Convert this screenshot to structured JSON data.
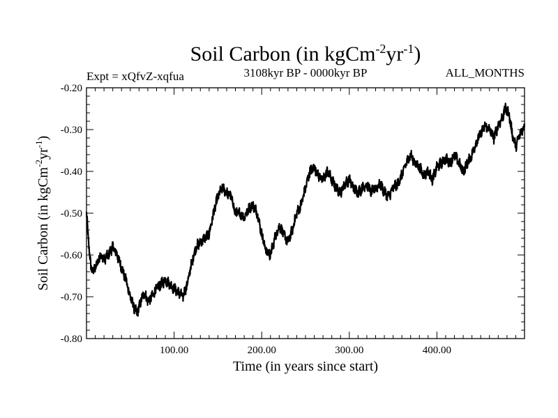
{
  "chart_data": {
    "type": "line",
    "title": {
      "prefix": "Soil Carbon (in kgCm",
      "sup1": "-2",
      "mid": "yr",
      "sup2": "-1",
      "suffix": ")"
    },
    "experiment_label": "Expt = xQfvZ-xqfua",
    "period_label": "3108kyr BP - 0000kyr BP",
    "season_label": "ALL_MONTHS",
    "xlabel": "Time (in years since start)",
    "ylabel": {
      "prefix": "Soil Carbon (in kgCm",
      "sup1": "-2",
      "mid": "yr",
      "sup2": "-1",
      "suffix": ")"
    },
    "xlim": [
      0,
      500
    ],
    "ylim": [
      -0.8,
      -0.2
    ],
    "x_ticks": [
      {
        "value": 100,
        "label": "100.00"
      },
      {
        "value": 200,
        "label": "200.00"
      },
      {
        "value": 300,
        "label": "300.00"
      },
      {
        "value": 400,
        "label": "400.00"
      }
    ],
    "y_ticks": [
      {
        "value": -0.2,
        "label": "-0.20"
      },
      {
        "value": -0.3,
        "label": "-0.30"
      },
      {
        "value": -0.4,
        "label": "-0.40"
      },
      {
        "value": -0.5,
        "label": "-0.50"
      },
      {
        "value": -0.6,
        "label": "-0.60"
      },
      {
        "value": -0.7,
        "label": "-0.70"
      },
      {
        "value": -0.8,
        "label": "-0.80"
      }
    ],
    "series": [
      {
        "name": "soil_carbon",
        "color": "#000000",
        "x": [
          0,
          2,
          5,
          8,
          12,
          16,
          20,
          25,
          30,
          35,
          40,
          45,
          50,
          55,
          58,
          62,
          66,
          70,
          75,
          80,
          85,
          90,
          95,
          100,
          105,
          110,
          115,
          120,
          125,
          130,
          135,
          140,
          145,
          150,
          155,
          160,
          165,
          170,
          175,
          180,
          185,
          190,
          195,
          200,
          205,
          210,
          215,
          220,
          225,
          230,
          235,
          240,
          245,
          250,
          255,
          260,
          265,
          270,
          275,
          280,
          285,
          290,
          295,
          300,
          305,
          310,
          315,
          320,
          325,
          330,
          335,
          340,
          345,
          350,
          355,
          360,
          365,
          370,
          375,
          380,
          385,
          390,
          395,
          400,
          405,
          410,
          415,
          420,
          425,
          430,
          435,
          440,
          445,
          450,
          455,
          460,
          465,
          470,
          475,
          478,
          482,
          486,
          490,
          495,
          500
        ],
        "y": [
          -0.5,
          -0.56,
          -0.63,
          -0.64,
          -0.62,
          -0.6,
          -0.61,
          -0.6,
          -0.58,
          -0.6,
          -0.63,
          -0.66,
          -0.7,
          -0.73,
          -0.74,
          -0.71,
          -0.69,
          -0.71,
          -0.7,
          -0.68,
          -0.67,
          -0.66,
          -0.67,
          -0.68,
          -0.69,
          -0.7,
          -0.67,
          -0.62,
          -0.58,
          -0.57,
          -0.56,
          -0.55,
          -0.5,
          -0.46,
          -0.44,
          -0.45,
          -0.46,
          -0.5,
          -0.5,
          -0.51,
          -0.49,
          -0.48,
          -0.5,
          -0.55,
          -0.59,
          -0.6,
          -0.56,
          -0.53,
          -0.55,
          -0.57,
          -0.54,
          -0.5,
          -0.48,
          -0.44,
          -0.4,
          -0.39,
          -0.41,
          -0.42,
          -0.4,
          -0.42,
          -0.44,
          -0.45,
          -0.43,
          -0.42,
          -0.44,
          -0.45,
          -0.44,
          -0.43,
          -0.45,
          -0.44,
          -0.43,
          -0.45,
          -0.46,
          -0.44,
          -0.43,
          -0.41,
          -0.38,
          -0.36,
          -0.38,
          -0.39,
          -0.41,
          -0.4,
          -0.42,
          -0.39,
          -0.38,
          -0.37,
          -0.38,
          -0.36,
          -0.38,
          -0.4,
          -0.38,
          -0.36,
          -0.33,
          -0.31,
          -0.29,
          -0.3,
          -0.32,
          -0.29,
          -0.27,
          -0.25,
          -0.26,
          -0.31,
          -0.34,
          -0.31,
          -0.29
        ]
      }
    ]
  }
}
